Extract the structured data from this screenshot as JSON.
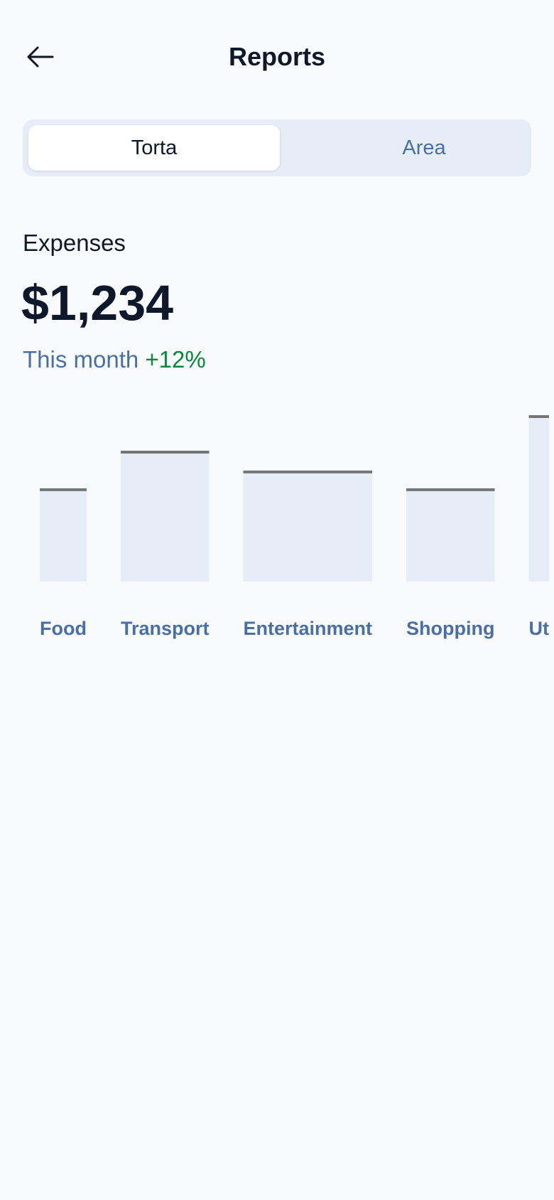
{
  "header": {
    "title": "Reports",
    "back_icon": "arrow-left-icon"
  },
  "tabs": [
    {
      "label": "Torta",
      "active": true
    },
    {
      "label": "Area",
      "active": false
    }
  ],
  "summary": {
    "label": "Expenses",
    "amount": "$1,234",
    "period": "This month",
    "change": "+12%"
  },
  "colors": {
    "bar_fill": "#e6edf6",
    "bar_top": "#757575",
    "label": "#4a6fa5",
    "positive": "#07883b"
  },
  "chart_data": {
    "type": "bar",
    "categories": [
      "Food",
      "Transport",
      "Entertainment",
      "Shopping",
      "Ut"
    ],
    "values": [
      0.47,
      0.66,
      0.56,
      0.47,
      0.84
    ],
    "grid": false,
    "title": "",
    "xlabel": "",
    "ylabel": ""
  }
}
